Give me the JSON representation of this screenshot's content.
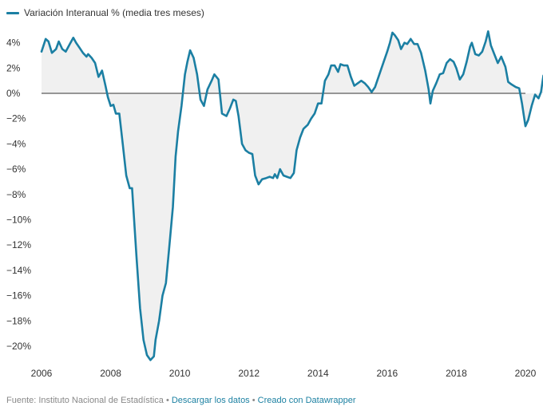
{
  "legend": {
    "label": "Variación Interanual % (media tres meses)",
    "color": "#1b7fa3"
  },
  "footer": {
    "source": "Fuente: Instituto Nacional de Estadística",
    "separator": " • ",
    "download": "Descargar los datos",
    "created": "Creado con Datawrapper"
  },
  "chart_data": {
    "type": "line",
    "title": "",
    "series": [
      {
        "name": "Variación Interanual % (media tres meses)",
        "color": "#1b7fa3"
      }
    ],
    "xlim": [
      2006,
      2020
    ],
    "ylim": [
      -21.5,
      5
    ],
    "x_ticks": [
      2006,
      2008,
      2010,
      2012,
      2014,
      2016,
      2018,
      2020
    ],
    "x_tick_labels": [
      "2006",
      "2008",
      "2010",
      "2012",
      "2014",
      "2016",
      "2018",
      "2020"
    ],
    "y_ticks": [
      4,
      2,
      0,
      -2,
      -4,
      -6,
      -8,
      -10,
      -12,
      -14,
      -16,
      -18,
      -20
    ],
    "y_tick_labels": [
      "4%",
      "2%",
      "0%",
      "−2%",
      "−4%",
      "−6%",
      "−8%",
      "−10%",
      "−12%",
      "−14%",
      "−16%",
      "−18%",
      "−20%"
    ],
    "baseline": 0,
    "area_fill": "#f0f0f0",
    "points": [
      [
        2006.0,
        3.3
      ],
      [
        2006.12,
        4.3
      ],
      [
        2006.2,
        4.1
      ],
      [
        2006.3,
        3.2
      ],
      [
        2006.42,
        3.5
      ],
      [
        2006.5,
        4.1
      ],
      [
        2006.6,
        3.5
      ],
      [
        2006.7,
        3.3
      ],
      [
        2006.8,
        3.8
      ],
      [
        2006.92,
        4.4
      ],
      [
        2007.0,
        4.0
      ],
      [
        2007.1,
        3.6
      ],
      [
        2007.2,
        3.2
      ],
      [
        2007.3,
        2.9
      ],
      [
        2007.35,
        3.1
      ],
      [
        2007.45,
        2.8
      ],
      [
        2007.55,
        2.4
      ],
      [
        2007.65,
        1.3
      ],
      [
        2007.75,
        1.8
      ],
      [
        2007.85,
        0.6
      ],
      [
        2007.92,
        -0.3
      ],
      [
        2008.0,
        -1.0
      ],
      [
        2008.08,
        -0.9
      ],
      [
        2008.15,
        -1.6
      ],
      [
        2008.25,
        -1.6
      ],
      [
        2008.35,
        -4.0
      ],
      [
        2008.45,
        -6.5
      ],
      [
        2008.55,
        -7.5
      ],
      [
        2008.62,
        -7.5
      ],
      [
        2008.75,
        -13.0
      ],
      [
        2008.85,
        -17.0
      ],
      [
        2008.95,
        -19.5
      ],
      [
        2009.05,
        -20.7
      ],
      [
        2009.15,
        -21.1
      ],
      [
        2009.25,
        -20.8
      ],
      [
        2009.3,
        -19.5
      ],
      [
        2009.4,
        -18.0
      ],
      [
        2009.5,
        -16.0
      ],
      [
        2009.6,
        -15.0
      ],
      [
        2009.7,
        -12.0
      ],
      [
        2009.8,
        -9.0
      ],
      [
        2009.88,
        -5.0
      ],
      [
        2009.95,
        -3.0
      ],
      [
        2010.05,
        -1.0
      ],
      [
        2010.15,
        1.5
      ],
      [
        2010.22,
        2.5
      ],
      [
        2010.3,
        3.4
      ],
      [
        2010.4,
        2.8
      ],
      [
        2010.5,
        1.5
      ],
      [
        2010.6,
        -0.5
      ],
      [
        2010.7,
        -1.0
      ],
      [
        2010.8,
        0.3
      ],
      [
        2010.92,
        1.0
      ],
      [
        2011.0,
        1.5
      ],
      [
        2011.12,
        1.1
      ],
      [
        2011.22,
        -1.6
      ],
      [
        2011.35,
        -1.8
      ],
      [
        2011.45,
        -1.2
      ],
      [
        2011.55,
        -0.5
      ],
      [
        2011.62,
        -0.6
      ],
      [
        2011.7,
        -1.8
      ],
      [
        2011.8,
        -4.0
      ],
      [
        2011.9,
        -4.5
      ],
      [
        2012.0,
        -4.7
      ],
      [
        2012.1,
        -4.8
      ],
      [
        2012.18,
        -6.5
      ],
      [
        2012.28,
        -7.2
      ],
      [
        2012.38,
        -6.8
      ],
      [
        2012.5,
        -6.7
      ],
      [
        2012.6,
        -6.6
      ],
      [
        2012.7,
        -6.7
      ],
      [
        2012.75,
        -6.4
      ],
      [
        2012.82,
        -6.7
      ],
      [
        2012.9,
        -6.0
      ],
      [
        2013.0,
        -6.5
      ],
      [
        2013.1,
        -6.6
      ],
      [
        2013.2,
        -6.7
      ],
      [
        2013.3,
        -6.3
      ],
      [
        2013.38,
        -4.5
      ],
      [
        2013.48,
        -3.5
      ],
      [
        2013.58,
        -2.8
      ],
      [
        2013.7,
        -2.5
      ],
      [
        2013.8,
        -2.0
      ],
      [
        2013.9,
        -1.6
      ],
      [
        2014.0,
        -0.8
      ],
      [
        2014.1,
        -0.8
      ],
      [
        2014.2,
        1.0
      ],
      [
        2014.3,
        1.5
      ],
      [
        2014.38,
        2.2
      ],
      [
        2014.48,
        2.2
      ],
      [
        2014.58,
        1.7
      ],
      [
        2014.65,
        2.3
      ],
      [
        2014.75,
        2.2
      ],
      [
        2014.85,
        2.2
      ],
      [
        2014.95,
        1.3
      ],
      [
        2015.05,
        0.6
      ],
      [
        2015.15,
        0.8
      ],
      [
        2015.25,
        1.0
      ],
      [
        2015.35,
        0.8
      ],
      [
        2015.45,
        0.5
      ],
      [
        2015.55,
        0.1
      ],
      [
        2015.65,
        0.5
      ],
      [
        2015.75,
        1.3
      ],
      [
        2015.9,
        2.5
      ],
      [
        2016.0,
        3.3
      ],
      [
        2016.08,
        4.0
      ],
      [
        2016.15,
        4.8
      ],
      [
        2016.22,
        4.6
      ],
      [
        2016.32,
        4.2
      ],
      [
        2016.4,
        3.5
      ],
      [
        2016.5,
        4.0
      ],
      [
        2016.58,
        3.9
      ],
      [
        2016.68,
        4.3
      ],
      [
        2016.78,
        3.9
      ],
      [
        2016.88,
        3.9
      ],
      [
        2016.98,
        3.2
      ],
      [
        2017.1,
        1.8
      ],
      [
        2017.2,
        0.3
      ],
      [
        2017.25,
        -0.8
      ],
      [
        2017.32,
        0.2
      ],
      [
        2017.42,
        0.8
      ],
      [
        2017.52,
        1.5
      ],
      [
        2017.62,
        1.6
      ],
      [
        2017.72,
        2.4
      ],
      [
        2017.82,
        2.7
      ],
      [
        2017.92,
        2.5
      ],
      [
        2018.0,
        2.0
      ],
      [
        2018.1,
        1.1
      ],
      [
        2018.2,
        1.5
      ],
      [
        2018.3,
        2.5
      ],
      [
        2018.4,
        3.7
      ],
      [
        2018.45,
        4.0
      ],
      [
        2018.55,
        3.1
      ],
      [
        2018.65,
        3.0
      ],
      [
        2018.75,
        3.3
      ],
      [
        2018.85,
        4.1
      ],
      [
        2018.92,
        4.9
      ],
      [
        2019.0,
        3.8
      ],
      [
        2019.1,
        3.1
      ],
      [
        2019.2,
        2.4
      ],
      [
        2019.3,
        2.9
      ],
      [
        2019.42,
        2.1
      ],
      [
        2019.5,
        0.9
      ],
      [
        2019.6,
        0.7
      ],
      [
        2019.72,
        0.5
      ],
      [
        2019.82,
        0.4
      ],
      [
        2019.9,
        -0.8
      ],
      [
        2020.0,
        -2.6
      ],
      [
        2020.08,
        -2.1
      ],
      [
        2020.18,
        -1.0
      ],
      [
        2020.28,
        -0.1
      ],
      [
        2020.38,
        -0.4
      ],
      [
        2020.45,
        0.1
      ],
      [
        2020.52,
        1.4
      ],
      [
        2020.6,
        1.2
      ],
      [
        2020.7,
        1.1
      ],
      [
        2020.78,
        0.8
      ],
      [
        2020.85,
        0.1
      ],
      [
        2020.95,
        0.2
      ],
      [
        2021.0,
        0.3
      ]
    ]
  }
}
